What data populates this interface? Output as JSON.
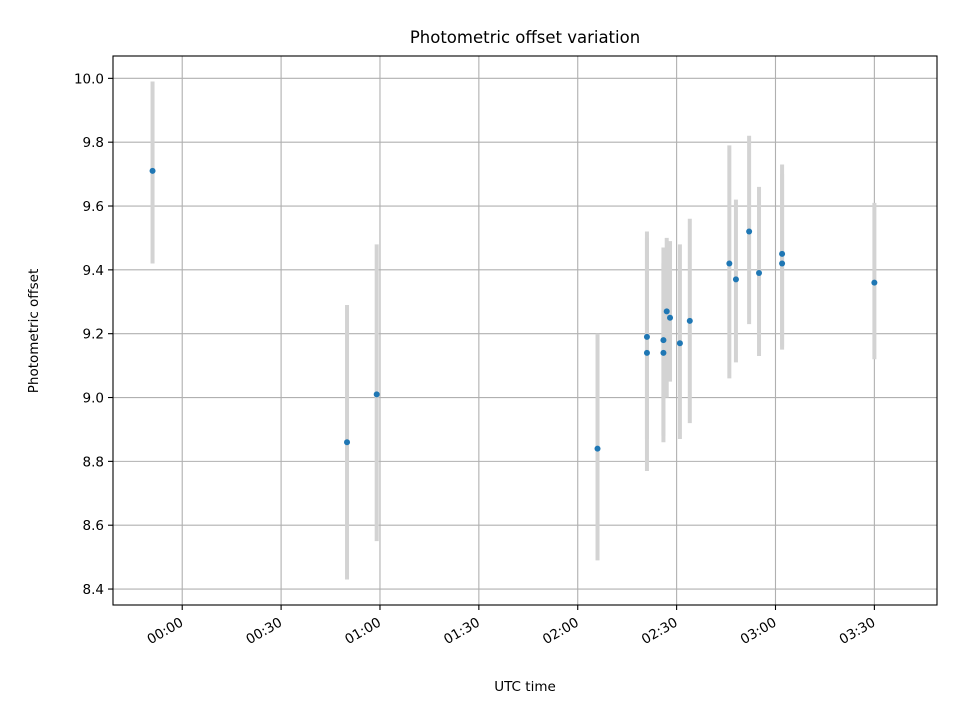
{
  "chart_data": {
    "type": "scatter",
    "title": "Photometric offset variation",
    "xlabel": "UTC time",
    "ylabel": "Photometric offset",
    "x_format": "HH:MM",
    "xlim": [
      "23:39",
      "03:49"
    ],
    "ylim": [
      8.35,
      10.07
    ],
    "x_ticks": [
      "00:00",
      "00:30",
      "01:00",
      "01:30",
      "02:00",
      "02:30",
      "03:00",
      "03:30"
    ],
    "y_ticks": [
      "8.4",
      "8.6",
      "8.8",
      "9.0",
      "9.2",
      "9.4",
      "9.6",
      "9.8",
      "10.0"
    ],
    "grid": true,
    "marker_color": "#1f77b4",
    "errorbar_color": "#d3d3d3",
    "points": [
      {
        "x": "23:51",
        "y": 9.71,
        "yerr_low": 9.42,
        "yerr_high": 9.99
      },
      {
        "x": "00:50",
        "y": 8.86,
        "yerr_low": 8.43,
        "yerr_high": 9.29
      },
      {
        "x": "00:59",
        "y": 9.01,
        "yerr_low": 8.55,
        "yerr_high": 9.48
      },
      {
        "x": "02:06",
        "y": 8.84,
        "yerr_low": 8.49,
        "yerr_high": 9.2
      },
      {
        "x": "02:21",
        "y": 9.19,
        "yerr_low": 8.87,
        "yerr_high": 9.5
      },
      {
        "x": "02:21",
        "y": 9.14,
        "yerr_low": 8.77,
        "yerr_high": 9.52
      },
      {
        "x": "02:26",
        "y": 9.14,
        "yerr_low": 8.88,
        "yerr_high": 9.42
      },
      {
        "x": "02:26",
        "y": 9.18,
        "yerr_low": 8.86,
        "yerr_high": 9.47
      },
      {
        "x": "02:27",
        "y": 9.27,
        "yerr_low": 9.0,
        "yerr_high": 9.5
      },
      {
        "x": "02:28",
        "y": 9.25,
        "yerr_low": 9.05,
        "yerr_high": 9.49
      },
      {
        "x": "02:31",
        "y": 9.17,
        "yerr_low": 8.87,
        "yerr_high": 9.48
      },
      {
        "x": "02:34",
        "y": 9.24,
        "yerr_low": 8.92,
        "yerr_high": 9.56
      },
      {
        "x": "02:46",
        "y": 9.42,
        "yerr_low": 9.06,
        "yerr_high": 9.79
      },
      {
        "x": "02:48",
        "y": 9.37,
        "yerr_low": 9.11,
        "yerr_high": 9.62
      },
      {
        "x": "02:52",
        "y": 9.52,
        "yerr_low": 9.23,
        "yerr_high": 9.82
      },
      {
        "x": "02:55",
        "y": 9.39,
        "yerr_low": 9.13,
        "yerr_high": 9.66
      },
      {
        "x": "03:02",
        "y": 9.45,
        "yerr_low": 9.16,
        "yerr_high": 9.73
      },
      {
        "x": "03:02",
        "y": 9.42,
        "yerr_low": 9.15,
        "yerr_high": 9.7
      },
      {
        "x": "03:30",
        "y": 9.36,
        "yerr_low": 9.12,
        "yerr_high": 9.61
      }
    ]
  }
}
